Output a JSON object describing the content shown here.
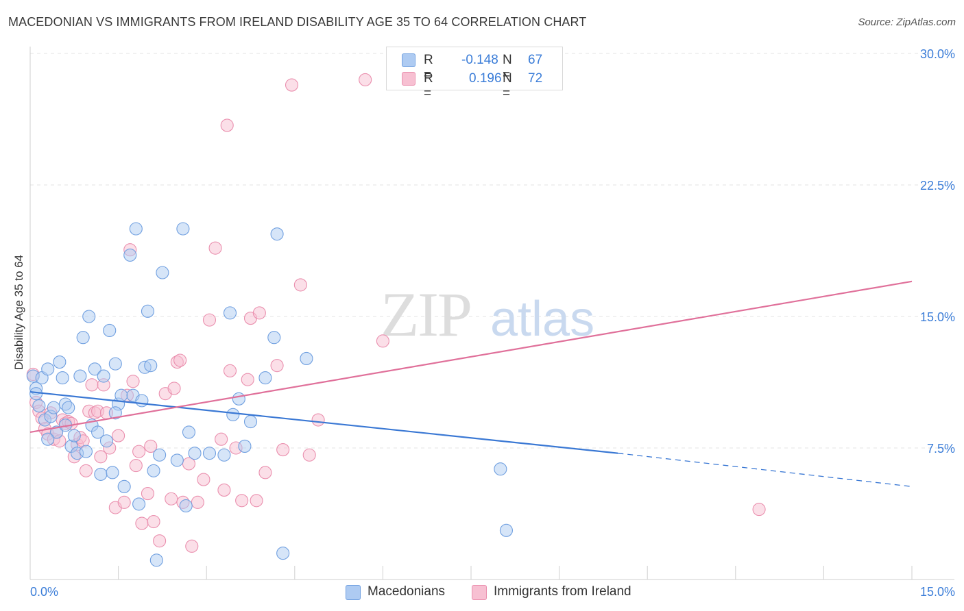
{
  "title": "MACEDONIAN VS IMMIGRANTS FROM IRELAND DISABILITY AGE 35 TO 64 CORRELATION CHART",
  "source": "Source: ZipAtlas.com",
  "watermark": {
    "zip": "ZIP",
    "atlas": "atlas"
  },
  "legend": {
    "r_label": "R =",
    "n_label": "N =",
    "series": [
      {
        "name": "Macedonians",
        "r": "-0.148",
        "n": "67",
        "fill": "#aecbf2",
        "stroke": "#6f9fe0"
      },
      {
        "name": "Immigrants from Ireland",
        "r": "0.196",
        "n": "72",
        "fill": "#f7c0d2",
        "stroke": "#ea8fae"
      }
    ]
  },
  "colors": {
    "blue_line": "#3a78d4",
    "pink_line": "#e0709a",
    "tick_text": "#3b7dd8",
    "grid": "#e3e3e3"
  },
  "chart_data": {
    "type": "scatter",
    "title": "MACEDONIAN VS IMMIGRANTS FROM IRELAND DISABILITY AGE 35 TO 64 CORRELATION CHART",
    "xlabel": "",
    "ylabel": "Disability Age 35 to 64",
    "xlim": [
      0,
      15
    ],
    "ylim": [
      0,
      30
    ],
    "x_tick_labels": [
      "0.0%",
      "15.0%"
    ],
    "y_ticks": [
      7.5,
      15.0,
      22.5,
      30.0
    ],
    "y_tick_labels": [
      "7.5%",
      "15.0%",
      "22.5%",
      "30.0%"
    ],
    "grid": true,
    "legend_position": "top-center",
    "series": [
      {
        "name": "Macedonians",
        "trend": {
          "x": [
            0,
            10.0
          ],
          "y": [
            10.7,
            7.2
          ],
          "dashed_to": [
            15,
            5.3
          ]
        },
        "points": [
          [
            0.05,
            11.6
          ],
          [
            0.1,
            10.9
          ],
          [
            0.1,
            10.6
          ],
          [
            0.2,
            11.5
          ],
          [
            0.25,
            9.1
          ],
          [
            0.3,
            12.0
          ],
          [
            0.35,
            9.3
          ],
          [
            0.4,
            9.8
          ],
          [
            0.45,
            8.4
          ],
          [
            0.5,
            12.4
          ],
          [
            0.55,
            11.5
          ],
          [
            0.6,
            10.0
          ],
          [
            0.65,
            9.8
          ],
          [
            0.7,
            7.6
          ],
          [
            0.75,
            8.2
          ],
          [
            0.8,
            7.2
          ],
          [
            0.85,
            11.6
          ],
          [
            0.9,
            13.8
          ],
          [
            0.95,
            7.3
          ],
          [
            1.0,
            15.0
          ],
          [
            1.05,
            8.8
          ],
          [
            1.1,
            12.0
          ],
          [
            1.15,
            8.4
          ],
          [
            1.2,
            6.0
          ],
          [
            1.25,
            11.6
          ],
          [
            1.3,
            7.9
          ],
          [
            1.35,
            14.2
          ],
          [
            1.4,
            6.1
          ],
          [
            1.45,
            12.3
          ],
          [
            1.5,
            10.0
          ],
          [
            1.55,
            10.5
          ],
          [
            1.6,
            5.3
          ],
          [
            1.7,
            18.5
          ],
          [
            1.75,
            10.5
          ],
          [
            1.8,
            20.0
          ],
          [
            1.85,
            4.3
          ],
          [
            1.9,
            10.2
          ],
          [
            1.95,
            12.1
          ],
          [
            2.0,
            15.3
          ],
          [
            2.1,
            6.2
          ],
          [
            2.15,
            1.1
          ],
          [
            2.2,
            7.1
          ],
          [
            2.25,
            17.5
          ],
          [
            2.5,
            6.8
          ],
          [
            2.6,
            20.0
          ],
          [
            2.65,
            4.2
          ],
          [
            2.7,
            8.4
          ],
          [
            2.8,
            7.2
          ],
          [
            3.05,
            7.2
          ],
          [
            3.3,
            7.1
          ],
          [
            3.4,
            15.2
          ],
          [
            3.45,
            9.4
          ],
          [
            3.55,
            10.3
          ],
          [
            3.65,
            7.6
          ],
          [
            3.75,
            9.0
          ],
          [
            4.0,
            11.5
          ],
          [
            4.15,
            13.8
          ],
          [
            4.2,
            19.7
          ],
          [
            4.3,
            1.5
          ],
          [
            4.7,
            12.6
          ],
          [
            0.3,
            8.0
          ],
          [
            0.15,
            9.9
          ],
          [
            0.6,
            8.8
          ],
          [
            1.45,
            9.5
          ],
          [
            2.05,
            12.2
          ],
          [
            8.0,
            6.3
          ],
          [
            8.1,
            2.8
          ]
        ]
      },
      {
        "name": "Immigrants from Ireland",
        "trend": {
          "x": [
            0,
            15
          ],
          "y": [
            8.4,
            17.0
          ]
        },
        "points": [
          [
            0.05,
            11.7
          ],
          [
            0.1,
            10.1
          ],
          [
            0.15,
            9.6
          ],
          [
            0.2,
            9.2
          ],
          [
            0.25,
            8.6
          ],
          [
            0.3,
            8.3
          ],
          [
            0.35,
            9.5
          ],
          [
            0.4,
            8.0
          ],
          [
            0.45,
            8.4
          ],
          [
            0.5,
            7.9
          ],
          [
            0.55,
            9.1
          ],
          [
            0.6,
            8.9
          ],
          [
            0.65,
            9.0
          ],
          [
            0.7,
            8.9
          ],
          [
            0.75,
            7.0
          ],
          [
            0.8,
            7.7
          ],
          [
            0.85,
            8.1
          ],
          [
            0.9,
            7.9
          ],
          [
            0.95,
            6.2
          ],
          [
            1.0,
            9.6
          ],
          [
            1.05,
            11.1
          ],
          [
            1.1,
            9.5
          ],
          [
            1.15,
            9.6
          ],
          [
            1.2,
            7.0
          ],
          [
            1.25,
            11.1
          ],
          [
            1.3,
            9.5
          ],
          [
            1.35,
            7.5
          ],
          [
            1.45,
            4.1
          ],
          [
            1.5,
            8.2
          ],
          [
            1.6,
            4.4
          ],
          [
            1.7,
            18.8
          ],
          [
            1.75,
            11.3
          ],
          [
            1.8,
            6.5
          ],
          [
            1.85,
            7.3
          ],
          [
            1.9,
            3.2
          ],
          [
            2.0,
            4.9
          ],
          [
            2.05,
            7.6
          ],
          [
            2.1,
            3.3
          ],
          [
            2.2,
            2.2
          ],
          [
            2.3,
            10.6
          ],
          [
            2.4,
            4.6
          ],
          [
            2.5,
            12.4
          ],
          [
            2.55,
            12.5
          ],
          [
            2.6,
            4.4
          ],
          [
            2.7,
            6.6
          ],
          [
            2.75,
            1.9
          ],
          [
            2.85,
            4.4
          ],
          [
            2.95,
            5.7
          ],
          [
            3.05,
            14.8
          ],
          [
            3.15,
            18.9
          ],
          [
            3.25,
            8.0
          ],
          [
            3.3,
            5.1
          ],
          [
            3.35,
            25.9
          ],
          [
            3.4,
            11.9
          ],
          [
            3.5,
            7.5
          ],
          [
            3.6,
            4.5
          ],
          [
            3.7,
            11.4
          ],
          [
            3.75,
            14.9
          ],
          [
            3.85,
            4.5
          ],
          [
            3.9,
            15.2
          ],
          [
            4.0,
            6.1
          ],
          [
            4.2,
            12.2
          ],
          [
            4.3,
            7.4
          ],
          [
            4.45,
            28.2
          ],
          [
            4.6,
            16.8
          ],
          [
            4.75,
            7.1
          ],
          [
            4.9,
            9.1
          ],
          [
            5.7,
            28.5
          ],
          [
            6.0,
            13.6
          ],
          [
            12.4,
            4.0
          ],
          [
            1.65,
            10.5
          ],
          [
            2.45,
            10.9
          ]
        ]
      }
    ]
  }
}
